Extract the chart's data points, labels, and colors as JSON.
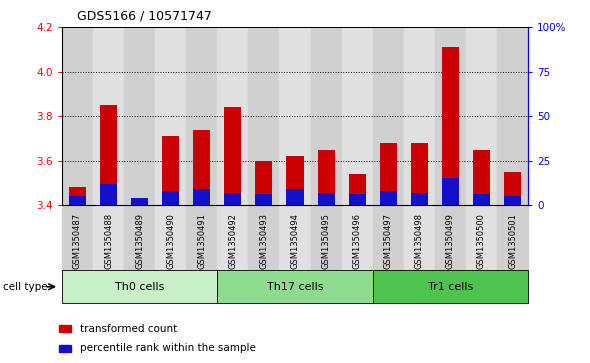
{
  "title": "GDS5166 / 10571747",
  "samples": [
    "GSM1350487",
    "GSM1350488",
    "GSM1350489",
    "GSM1350490",
    "GSM1350491",
    "GSM1350492",
    "GSM1350493",
    "GSM1350494",
    "GSM1350495",
    "GSM1350496",
    "GSM1350497",
    "GSM1350498",
    "GSM1350499",
    "GSM1350500",
    "GSM1350501"
  ],
  "red_values": [
    3.48,
    3.85,
    3.42,
    3.71,
    3.74,
    3.84,
    3.6,
    3.62,
    3.65,
    3.54,
    3.68,
    3.68,
    4.11,
    3.65,
    3.55
  ],
  "blue_values_pct": [
    5,
    12,
    4,
    8,
    9,
    7,
    6,
    9,
    7,
    6,
    8,
    7,
    15,
    6,
    5
  ],
  "cell_groups": [
    {
      "label": "Th0 cells",
      "start": 0,
      "end": 5,
      "color": "#c8efc8"
    },
    {
      "label": "Th17 cells",
      "start": 5,
      "end": 10,
      "color": "#8edc8e"
    },
    {
      "label": "Tr1 cells",
      "start": 10,
      "end": 15,
      "color": "#4dc44d"
    }
  ],
  "ymin": 3.4,
  "ymax": 4.2,
  "yticks_left": [
    3.4,
    3.6,
    3.8,
    4.0,
    4.2
  ],
  "yticks_right": [
    0,
    25,
    50,
    75,
    100
  ],
  "ytick_labels_right": [
    "0",
    "25",
    "50",
    "75",
    "100%"
  ],
  "grid_values": [
    3.6,
    3.8,
    4.0
  ],
  "bar_color_red": "#cc0000",
  "bar_color_blue": "#1111cc",
  "bar_width": 0.55,
  "col_bg_even": "#d0d0d0",
  "col_bg_odd": "#e0e0e0",
  "legend_red": "transformed count",
  "legend_blue": "percentile rank within the sample",
  "cell_type_label": "cell type"
}
